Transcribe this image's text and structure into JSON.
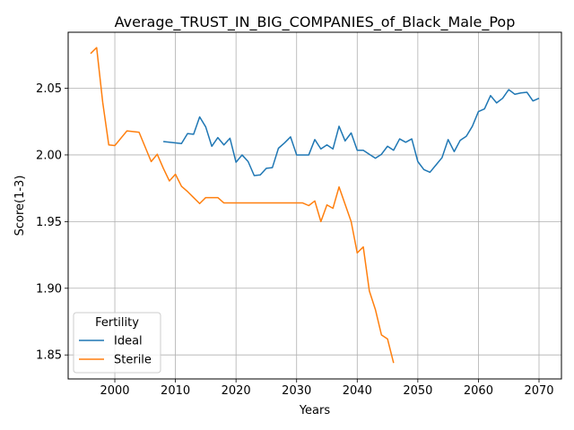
{
  "chart_data": {
    "type": "line",
    "title": "Average_TRUST_IN_BIG_COMPANIES_of_Black_Male_Pop",
    "xlabel": "Years",
    "ylabel": "Score(1-3)",
    "xlim": [
      1992.3,
      2073.7
    ],
    "ylim": [
      1.832,
      2.092
    ],
    "xticks": [
      2000,
      2010,
      2020,
      2030,
      2040,
      2050,
      2060,
      2070
    ],
    "yticks": [
      1.85,
      1.9,
      1.95,
      2.0,
      2.05
    ],
    "ytick_labels": [
      "1.85",
      "1.90",
      "1.95",
      "2.00",
      "2.05"
    ],
    "grid": true,
    "legend": {
      "title": "Fertility",
      "position": "lower-left"
    },
    "series": [
      {
        "name": "Ideal",
        "color": "#1f77b4",
        "x": [
          2008,
          2009,
          2010,
          2011,
          2012,
          2013,
          2014,
          2015,
          2016,
          2017,
          2018,
          2019,
          2020,
          2021,
          2022,
          2023,
          2024,
          2025,
          2026,
          2027,
          2028,
          2029,
          2030,
          2031,
          2032,
          2033,
          2034,
          2035,
          2036,
          2037,
          2038,
          2039,
          2040,
          2041,
          2042,
          2043,
          2044,
          2045,
          2046,
          2047,
          2048,
          2049,
          2050,
          2051,
          2052,
          2053,
          2054,
          2055,
          2056,
          2057,
          2058,
          2059,
          2060,
          2061,
          2062,
          2063,
          2064,
          2065,
          2066,
          2067,
          2068,
          2069,
          2070
        ],
        "values": [
          2.01,
          2.0095,
          2.009,
          2.0085,
          2.016,
          2.0155,
          2.0285,
          2.021,
          2.0065,
          2.013,
          2.0075,
          2.0125,
          1.9945,
          2.0,
          1.995,
          1.9845,
          1.985,
          1.99,
          1.9905,
          2.005,
          2.009,
          2.0135,
          2.0,
          2.0,
          2.0,
          2.0115,
          2.0045,
          2.0075,
          2.0045,
          2.0215,
          2.0105,
          2.0165,
          2.0035,
          2.0035,
          2.0005,
          1.9975,
          2.0005,
          2.0065,
          2.0035,
          2.012,
          2.0095,
          2.012,
          1.995,
          1.989,
          1.987,
          1.9925,
          1.998,
          2.0115,
          2.0025,
          2.011,
          2.014,
          2.0215,
          2.0325,
          2.0345,
          2.0445,
          2.039,
          2.0425,
          2.049,
          2.0455,
          2.0465,
          2.047,
          2.0405,
          2.0425
        ]
      },
      {
        "name": "Sterile",
        "color": "#ff7f0e",
        "x": [
          1996,
          1997,
          1998,
          1999,
          2000,
          2001,
          2002,
          2003,
          2004,
          2005,
          2006,
          2007,
          2008,
          2009,
          2010,
          2011,
          2012,
          2013,
          2014,
          2015,
          2016,
          2017,
          2018,
          2019,
          2020,
          2021,
          2022,
          2023,
          2024,
          2025,
          2026,
          2027,
          2028,
          2029,
          2030,
          2031,
          2032,
          2033,
          2034,
          2035,
          2036,
          2037,
          2038,
          2039,
          2040,
          2041,
          2042,
          2043,
          2044,
          2045,
          2046
        ],
        "values": [
          2.076,
          2.0805,
          2.0395,
          2.0075,
          2.007,
          2.0125,
          2.018,
          2.0175,
          2.017,
          2.006,
          1.995,
          2.0005,
          1.99,
          1.9805,
          1.9855,
          1.9765,
          1.9725,
          1.968,
          1.9635,
          1.968,
          1.968,
          1.968,
          1.964,
          1.964,
          1.964,
          1.964,
          1.964,
          1.964,
          1.964,
          1.964,
          1.964,
          1.964,
          1.964,
          1.964,
          1.964,
          1.964,
          1.962,
          1.9655,
          1.95,
          1.9625,
          1.96,
          1.976,
          1.963,
          1.95,
          1.9265,
          1.931,
          1.898,
          1.884,
          1.865,
          1.862,
          1.844
        ]
      }
    ]
  }
}
